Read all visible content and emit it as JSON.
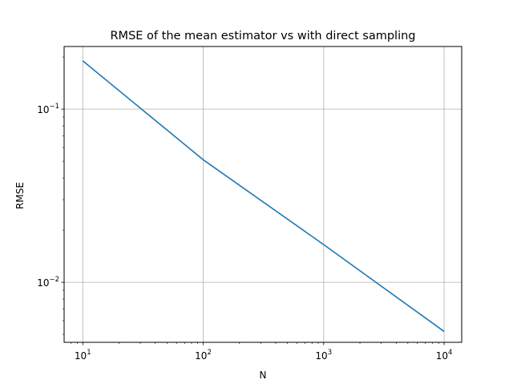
{
  "chart_data": {
    "type": "line",
    "title": "RMSE of the mean estimator vs with direct sampling",
    "xlabel": "N",
    "ylabel": "RMSE",
    "xscale": "log",
    "yscale": "log",
    "xlim": [
      7,
      14000
    ],
    "ylim": [
      0.0045,
      0.23
    ],
    "grid": true,
    "x_ticks": [
      {
        "value": 10,
        "base": "10",
        "exp": "1"
      },
      {
        "value": 100,
        "base": "10",
        "exp": "2"
      },
      {
        "value": 1000,
        "base": "10",
        "exp": "3"
      },
      {
        "value": 10000,
        "base": "10",
        "exp": "4"
      }
    ],
    "y_ticks": [
      {
        "value": 0.01,
        "base": "10",
        "exp": "−2"
      },
      {
        "value": 0.1,
        "base": "10",
        "exp": "−1"
      }
    ],
    "series": [
      {
        "color": "#1f77b4",
        "x": [
          10,
          100,
          1000,
          10000
        ],
        "y": [
          0.19,
          0.051,
          0.0165,
          0.0052
        ]
      }
    ]
  }
}
